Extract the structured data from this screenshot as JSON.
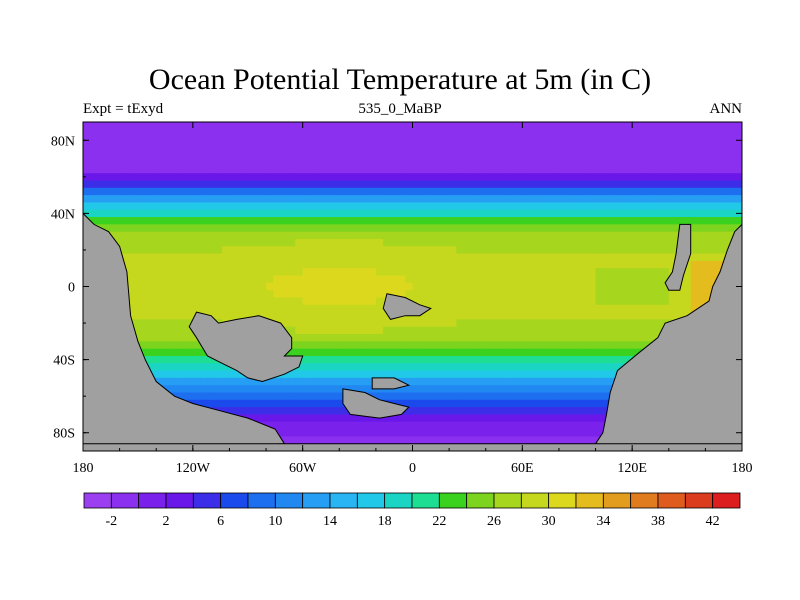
{
  "chart_data": {
    "type": "heatmap",
    "title": "Ocean Potential Temperature at 5m (in C)",
    "subtitle_left": "Expt = tExyd",
    "subtitle_center": "535_0_MaBP",
    "subtitle_right": "ANN",
    "xlim": [
      -180,
      180
    ],
    "ylim": [
      -90,
      90
    ],
    "x_ticks": [
      {
        "value": -180,
        "label": "180"
      },
      {
        "value": -120,
        "label": "120W"
      },
      {
        "value": -60,
        "label": "60W"
      },
      {
        "value": 0,
        "label": "0"
      },
      {
        "value": 60,
        "label": "60E"
      },
      {
        "value": 120,
        "label": "120E"
      },
      {
        "value": 180,
        "label": "180"
      }
    ],
    "y_ticks": [
      {
        "value": 80,
        "label": "80N"
      },
      {
        "value": 40,
        "label": "40N"
      },
      {
        "value": 0,
        "label": "0"
      },
      {
        "value": -40,
        "label": "40S"
      },
      {
        "value": -80,
        "label": "80S"
      }
    ],
    "colorbar": {
      "min": -4,
      "max": 44,
      "step": 2,
      "labels": [
        "-2",
        "2",
        "6",
        "10",
        "14",
        "18",
        "22",
        "26",
        "30",
        "34",
        "38",
        "42"
      ],
      "label_values": [
        -2,
        2,
        6,
        10,
        14,
        18,
        22,
        26,
        30,
        34,
        38,
        42
      ],
      "colors": [
        "#9b3ff0",
        "#8a30ee",
        "#7a22ec",
        "#6a18ea",
        "#3c2ee8",
        "#1a4aec",
        "#1e6ef0",
        "#2188f2",
        "#259ef4",
        "#29b4f4",
        "#22c8e8",
        "#1ad4c4",
        "#1ede94",
        "#3ad21e",
        "#7cd41e",
        "#a6d61e",
        "#c6d81e",
        "#dcd81e",
        "#e4bc1e",
        "#e29c1e",
        "#e07c1e",
        "#de5c1e",
        "#dc3c1e",
        "#dc1e1e"
      ]
    },
    "land_color": "#a0a0a0",
    "land_masses": [
      {
        "name": "americas",
        "points": [
          [
            -180,
            40
          ],
          [
            -174,
            34
          ],
          [
            -166,
            30
          ],
          [
            -160,
            22
          ],
          [
            -156,
            8
          ],
          [
            -154,
            -16
          ],
          [
            -150,
            -30
          ],
          [
            -146,
            -40
          ],
          [
            -140,
            -52
          ],
          [
            -130,
            -60
          ],
          [
            -120,
            -64
          ],
          [
            -105,
            -68
          ],
          [
            -90,
            -72
          ],
          [
            -75,
            -78
          ],
          [
            -70,
            -86
          ],
          [
            -180,
            -90
          ]
        ]
      },
      {
        "name": "east-continent",
        "points": [
          [
            180,
            34
          ],
          [
            176,
            30
          ],
          [
            172,
            20
          ],
          [
            168,
            8
          ],
          [
            164,
            0
          ],
          [
            162,
            -8
          ],
          [
            150,
            -16
          ],
          [
            138,
            -20
          ],
          [
            134,
            -28
          ],
          [
            124,
            -36
          ],
          [
            112,
            -46
          ],
          [
            108,
            -58
          ],
          [
            106,
            -70
          ],
          [
            104,
            -80
          ],
          [
            100,
            -86
          ],
          [
            180,
            -90
          ]
        ]
      },
      {
        "name": "south-polar-strip",
        "points": [
          [
            -180,
            -86
          ],
          [
            180,
            -86
          ],
          [
            180,
            -90
          ],
          [
            -180,
            -90
          ]
        ]
      },
      {
        "name": "west-central-island",
        "points": [
          [
            -118,
            -14
          ],
          [
            -110,
            -16
          ],
          [
            -106,
            -20
          ],
          [
            -96,
            -18
          ],
          [
            -84,
            -16
          ],
          [
            -72,
            -20
          ],
          [
            -66,
            -28
          ],
          [
            -66,
            -34
          ],
          [
            -70,
            -38
          ],
          [
            -60,
            -38
          ],
          [
            -62,
            -44
          ],
          [
            -70,
            -48
          ],
          [
            -82,
            -52
          ],
          [
            -90,
            -50
          ],
          [
            -96,
            -46
          ],
          [
            -104,
            -42
          ],
          [
            -112,
            -38
          ],
          [
            -118,
            -28
          ],
          [
            -122,
            -22
          ]
        ]
      },
      {
        "name": "equatorial-island",
        "points": [
          [
            -14,
            -4
          ],
          [
            -4,
            -6
          ],
          [
            4,
            -10
          ],
          [
            10,
            -12
          ],
          [
            4,
            -16
          ],
          [
            -4,
            -16
          ],
          [
            -12,
            -18
          ],
          [
            -16,
            -12
          ]
        ]
      },
      {
        "name": "south-island-large",
        "points": [
          [
            -38,
            -56
          ],
          [
            -26,
            -58
          ],
          [
            -18,
            -62
          ],
          [
            -10,
            -64
          ],
          [
            -2,
            -66
          ],
          [
            -6,
            -70
          ],
          [
            -18,
            -72
          ],
          [
            -34,
            -70
          ],
          [
            -38,
            -64
          ]
        ]
      },
      {
        "name": "south-island-small",
        "points": [
          [
            -22,
            -50
          ],
          [
            -10,
            -50
          ],
          [
            -2,
            -54
          ],
          [
            -10,
            -56
          ],
          [
            -22,
            -56
          ]
        ]
      },
      {
        "name": "east-thin-island",
        "points": [
          [
            146,
            34
          ],
          [
            152,
            34
          ],
          [
            152,
            18
          ],
          [
            148,
            6
          ],
          [
            146,
            -2
          ],
          [
            140,
            -2
          ],
          [
            138,
            2
          ],
          [
            142,
            8
          ],
          [
            144,
            18
          ]
        ]
      }
    ]
  }
}
